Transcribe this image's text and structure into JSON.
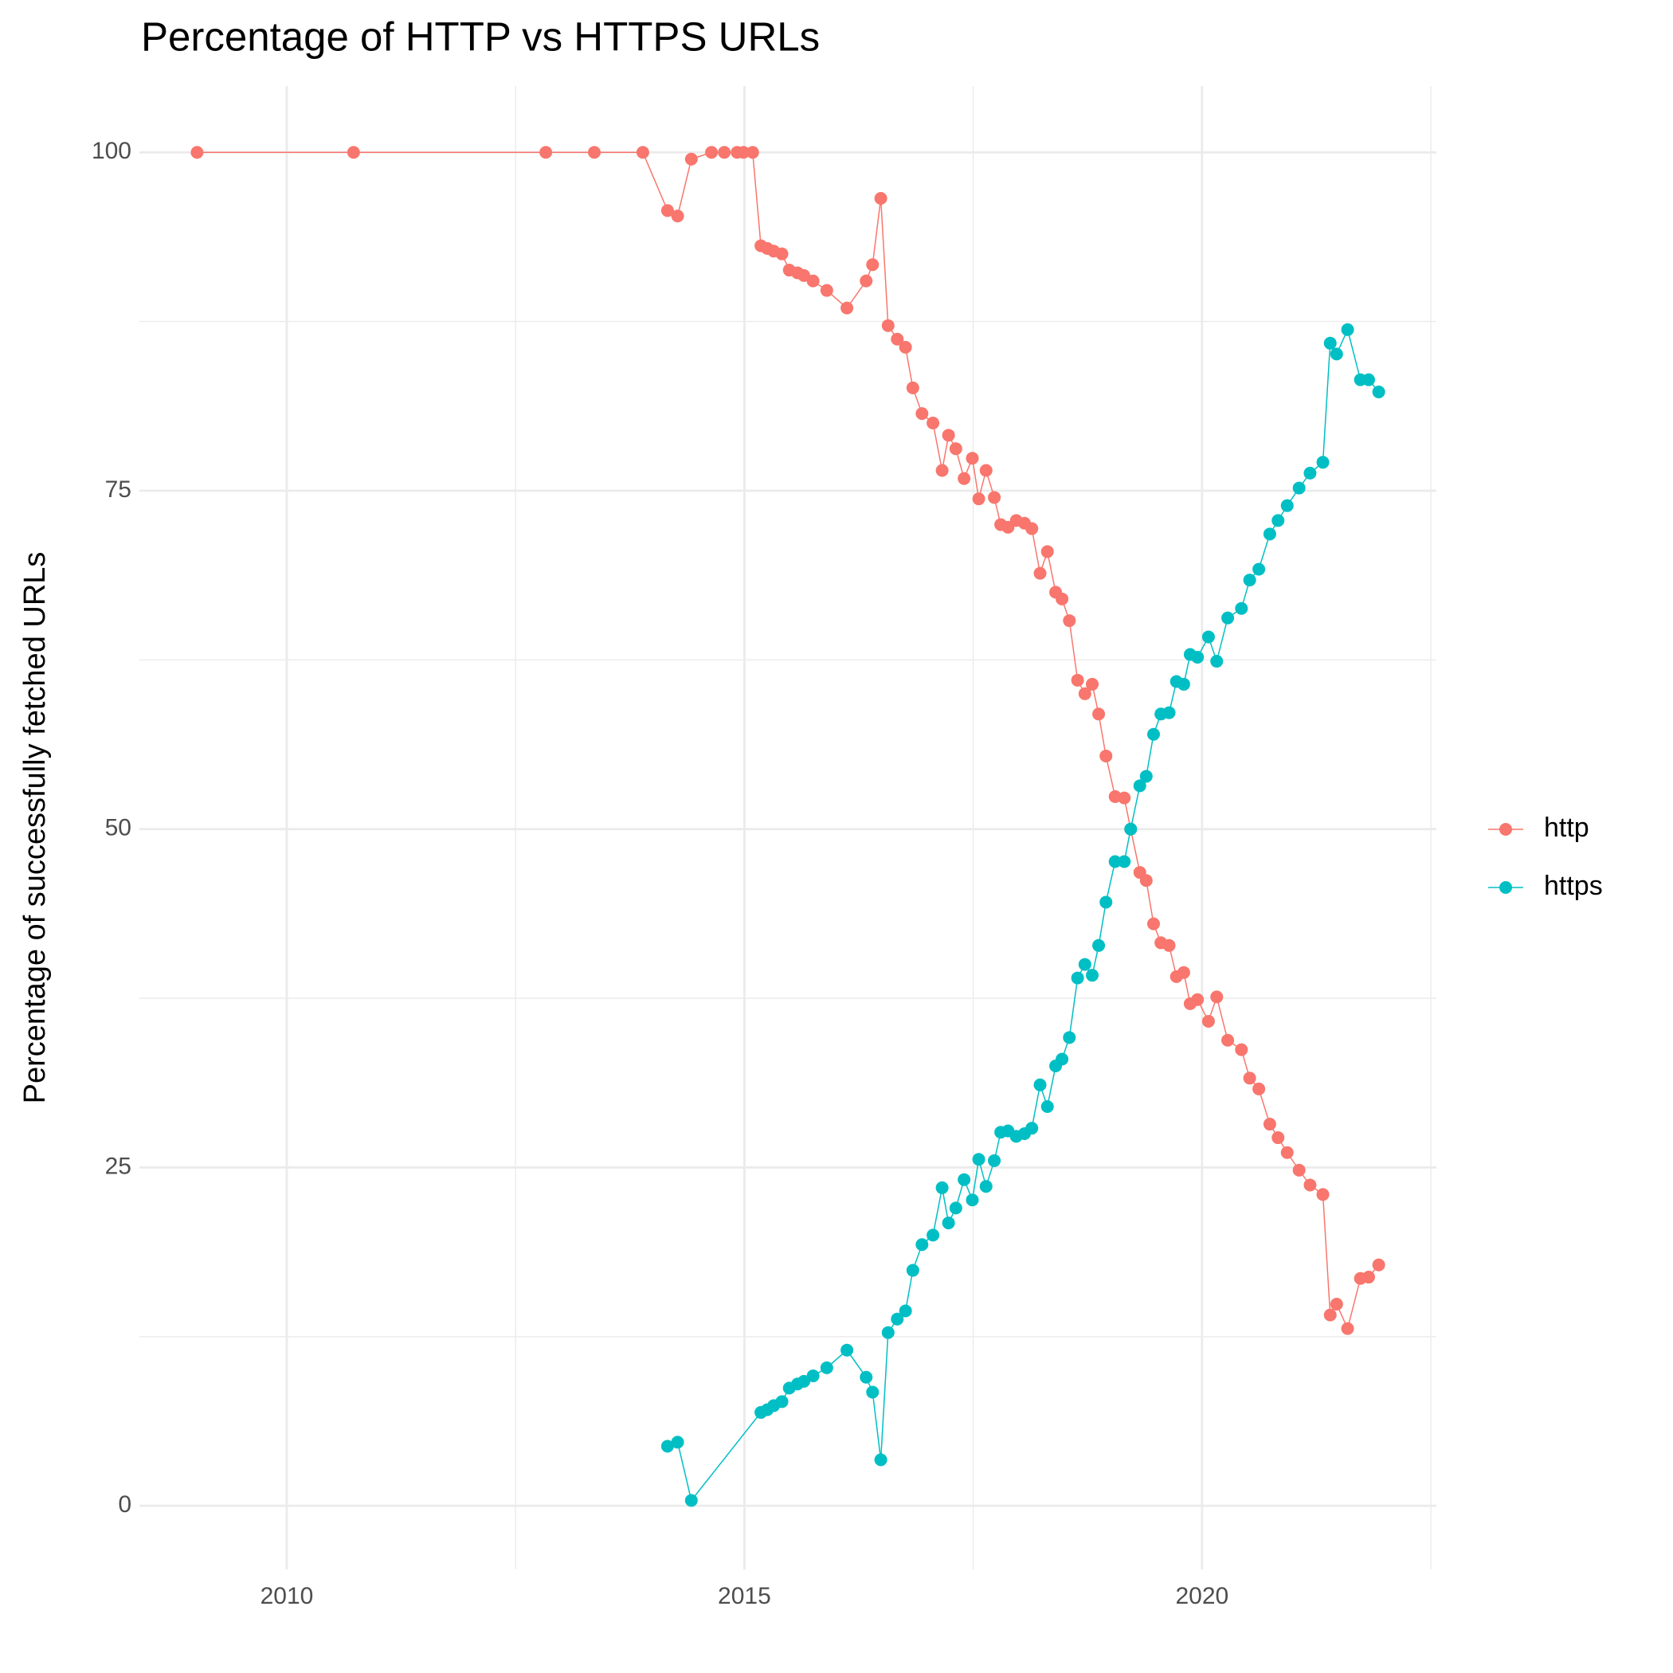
{
  "chart_data": {
    "type": "line",
    "title": "Percentage of HTTP vs HTTPS URLs",
    "y_label": "Percentage of successfully fetched URLs",
    "xlim": [
      2008.39,
      2022.56
    ],
    "xticks": [
      2010,
      2015,
      2020
    ],
    "ylim": [
      -4.7,
      104.9
    ],
    "yticks": [
      0,
      25,
      50,
      75,
      100
    ],
    "grid": true,
    "legend": "right",
    "series": [
      {
        "name": "http",
        "color": "#F8766D",
        "x": [
          2009.02,
          2010.73,
          2012.83,
          2013.36,
          2013.89,
          2014.16,
          2014.27,
          2014.42,
          2014.64,
          2014.78,
          2014.92,
          2014.99,
          2015.09,
          2015.18,
          2015.25,
          2015.32,
          2015.41,
          2015.49,
          2015.58,
          2015.65,
          2015.75,
          2015.9,
          2016.12,
          2016.33,
          2016.4,
          2016.49,
          2016.57,
          2016.67,
          2016.76,
          2016.84,
          2016.94,
          2017.06,
          2017.16,
          2017.23,
          2017.31,
          2017.4,
          2017.49,
          2017.56,
          2017.64,
          2017.73,
          2017.8,
          2017.88,
          2017.97,
          2018.06,
          2018.14,
          2018.23,
          2018.31,
          2018.4,
          2018.47,
          2018.55,
          2018.64,
          2018.72,
          2018.8,
          2018.87,
          2018.95,
          2019.05,
          2019.15,
          2019.22,
          2019.32,
          2019.39,
          2019.47,
          2019.55,
          2019.64,
          2019.72,
          2019.8,
          2019.87,
          2019.95,
          2020.07,
          2020.16,
          2020.28,
          2020.43,
          2020.52,
          2020.62,
          2020.74,
          2020.83,
          2020.93,
          2021.06,
          2021.18,
          2021.32,
          2021.4,
          2021.47,
          2021.59,
          2021.73,
          2021.82,
          2021.93
        ],
        "values": [
          100,
          100,
          100,
          100,
          100,
          95.7,
          95.3,
          99.5,
          100,
          100,
          100,
          100,
          100,
          93.1,
          92.9,
          92.7,
          92.5,
          91.3,
          91.1,
          90.9,
          90.5,
          89.8,
          88.5,
          90.5,
          91.7,
          96.6,
          87.2,
          86.2,
          85.6,
          82.6,
          80.7,
          80.0,
          76.5,
          79.1,
          78.1,
          75.9,
          77.4,
          74.4,
          76.5,
          74.5,
          72.5,
          72.3,
          72.8,
          72.6,
          72.2,
          68.9,
          70.5,
          67.5,
          67.0,
          65.4,
          61.0,
          60.0,
          60.7,
          58.5,
          55.4,
          52.4,
          52.3,
          50.0,
          46.8,
          46.2,
          43.0,
          41.6,
          41.4,
          39.1,
          39.4,
          37.1,
          37.4,
          35.8,
          37.6,
          34.4,
          33.7,
          31.6,
          30.8,
          28.2,
          27.2,
          26.1,
          24.8,
          23.7,
          23.0,
          14.1,
          14.9,
          13.1,
          16.8,
          16.9,
          17.8
        ]
      },
      {
        "name": "https",
        "color": "#00BFC4",
        "x": [
          2014.16,
          2014.27,
          2014.42,
          2015.18,
          2015.25,
          2015.32,
          2015.41,
          2015.49,
          2015.58,
          2015.65,
          2015.75,
          2015.9,
          2016.12,
          2016.33,
          2016.4,
          2016.49,
          2016.57,
          2016.67,
          2016.76,
          2016.84,
          2016.94,
          2017.06,
          2017.16,
          2017.23,
          2017.31,
          2017.4,
          2017.49,
          2017.56,
          2017.64,
          2017.73,
          2017.8,
          2017.88,
          2017.97,
          2018.06,
          2018.14,
          2018.23,
          2018.31,
          2018.4,
          2018.47,
          2018.55,
          2018.64,
          2018.72,
          2018.8,
          2018.87,
          2018.95,
          2019.05,
          2019.15,
          2019.22,
          2019.32,
          2019.39,
          2019.47,
          2019.55,
          2019.64,
          2019.72,
          2019.8,
          2019.87,
          2019.95,
          2020.07,
          2020.16,
          2020.28,
          2020.43,
          2020.52,
          2020.62,
          2020.74,
          2020.83,
          2020.93,
          2021.06,
          2021.18,
          2021.32,
          2021.4,
          2021.47,
          2021.59,
          2021.73,
          2021.82,
          2021.93
        ],
        "values": [
          4.4,
          4.7,
          0.4,
          6.9,
          7.1,
          7.4,
          7.7,
          8.7,
          9.0,
          9.2,
          9.6,
          10.2,
          11.5,
          9.5,
          8.4,
          3.4,
          12.8,
          13.8,
          14.4,
          17.4,
          19.3,
          20.0,
          23.5,
          20.9,
          22.0,
          24.1,
          22.6,
          25.6,
          23.6,
          25.5,
          27.6,
          27.7,
          27.3,
          27.5,
          27.9,
          31.1,
          29.5,
          32.5,
          33.0,
          34.6,
          39.0,
          40.0,
          39.2,
          41.4,
          44.6,
          47.6,
          47.6,
          50.0,
          53.2,
          53.9,
          57.0,
          58.5,
          58.6,
          60.9,
          60.7,
          62.9,
          62.7,
          64.2,
          62.4,
          65.6,
          66.3,
          68.4,
          69.2,
          71.8,
          72.8,
          73.9,
          75.2,
          76.3,
          77.1,
          85.9,
          85.1,
          86.9,
          83.2,
          83.2,
          82.3
        ]
      }
    ]
  }
}
